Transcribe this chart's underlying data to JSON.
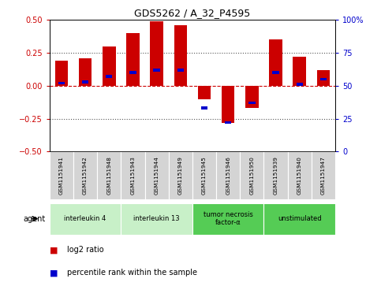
{
  "title": "GDS5262 / A_32_P4595",
  "samples": [
    "GSM1151941",
    "GSM1151942",
    "GSM1151948",
    "GSM1151943",
    "GSM1151944",
    "GSM1151949",
    "GSM1151945",
    "GSM1151946",
    "GSM1151950",
    "GSM1151939",
    "GSM1151940",
    "GSM1151947"
  ],
  "log2_ratio": [
    0.19,
    0.21,
    0.3,
    0.4,
    0.49,
    0.46,
    -0.1,
    -0.28,
    -0.17,
    0.35,
    0.22,
    0.12
  ],
  "percentile_rank": [
    52,
    53,
    57,
    60,
    62,
    62,
    33,
    22,
    37,
    60,
    51,
    55
  ],
  "agents": [
    {
      "label": "interleukin 4",
      "start": 0,
      "end": 3,
      "color": "#c8f0c8"
    },
    {
      "label": "interleukin 13",
      "start": 3,
      "end": 6,
      "color": "#c8f0c8"
    },
    {
      "label": "tumor necrosis\nfactor-α",
      "start": 6,
      "end": 9,
      "color": "#55cc55"
    },
    {
      "label": "unstimulated",
      "start": 9,
      "end": 12,
      "color": "#55cc55"
    }
  ],
  "bar_color_red": "#cc0000",
  "bar_color_blue": "#0000cc",
  "ylim": [
    -0.5,
    0.5
  ],
  "y2lim": [
    0,
    100
  ],
  "yticks": [
    -0.5,
    -0.25,
    0.0,
    0.25,
    0.5
  ],
  "y2ticks": [
    0,
    25,
    50,
    75,
    100
  ],
  "hline_color": "#cc0000",
  "dotted_color": "#555555",
  "bg_color": "#ffffff",
  "bar_width": 0.55,
  "agent_label": "agent",
  "legend_log2": "log2 ratio",
  "legend_pct": "percentile rank within the sample"
}
